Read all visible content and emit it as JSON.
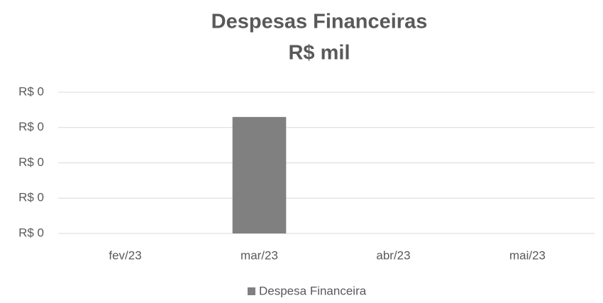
{
  "chart_data": {
    "type": "bar",
    "title": "Despesas Financeiras",
    "subtitle": "R$ mil",
    "categories": [
      "fev/23",
      "mar/23",
      "abr/23",
      "mai/23"
    ],
    "series": [
      {
        "name": "Despesa Financeira",
        "color": "#808080",
        "values": [
          0,
          0.33,
          0,
          0
        ]
      }
    ],
    "ylim": [
      0,
      0.4
    ],
    "yticks": [
      {
        "value": 0,
        "label": "R$ 0"
      },
      {
        "value": 0.1,
        "label": "R$ 0"
      },
      {
        "value": 0.2,
        "label": "R$ 0"
      },
      {
        "value": 0.3,
        "label": "R$ 0"
      },
      {
        "value": 0.4,
        "label": "R$ 0"
      }
    ],
    "grid": true,
    "legend": "bottom"
  }
}
